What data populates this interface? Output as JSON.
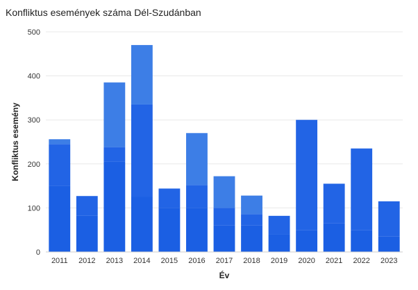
{
  "chart_data": {
    "type": "bar",
    "title": "Konfliktus események száma Dél-Szudánban",
    "xlabel": "Év",
    "ylabel": "Konfliktus esemény",
    "ylim": [
      0,
      500
    ],
    "yticks": [
      0,
      100,
      200,
      300,
      400,
      500
    ],
    "grid": true,
    "stacked": true,
    "categories": [
      "2011",
      "2012",
      "2013",
      "2014",
      "2015",
      "2016",
      "2017",
      "2018",
      "2019",
      "2020",
      "2021",
      "2022",
      "2023"
    ],
    "values": [
      256,
      127,
      385,
      470,
      144,
      270,
      172,
      128,
      82,
      300,
      155,
      235,
      115
    ],
    "segments": [
      [
        150,
        95,
        11
      ],
      [
        82,
        45
      ],
      [
        205,
        33,
        147
      ],
      [
        125,
        210,
        135
      ],
      [
        100,
        44
      ],
      [
        100,
        52,
        118
      ],
      [
        60,
        40,
        72
      ],
      [
        60,
        26,
        42
      ],
      [
        40,
        42
      ],
      [
        50,
        250
      ],
      [
        65,
        90
      ],
      [
        50,
        185
      ],
      [
        35,
        80
      ]
    ],
    "colors": [
      "#1b5fe3",
      "#2264e5",
      "#3d7ee6"
    ]
  }
}
